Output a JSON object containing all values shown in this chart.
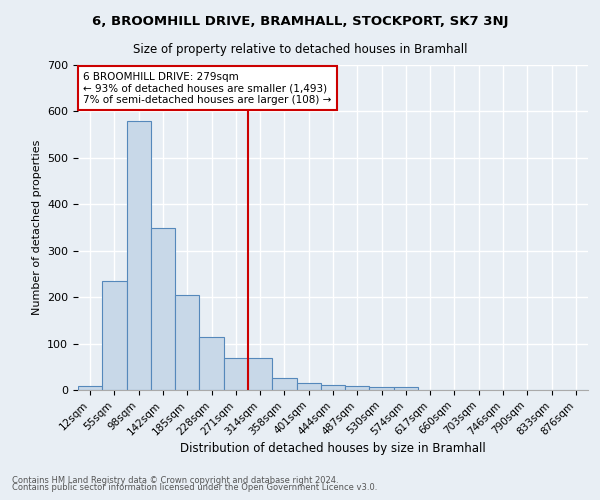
{
  "title1": "6, BROOMHILL DRIVE, BRAMHALL, STOCKPORT, SK7 3NJ",
  "title2": "Size of property relative to detached houses in Bramhall",
  "xlabel": "Distribution of detached houses by size in Bramhall",
  "ylabel": "Number of detached properties",
  "footnote1": "Contains HM Land Registry data © Crown copyright and database right 2024.",
  "footnote2": "Contains public sector information licensed under the Open Government Licence v3.0.",
  "bin_labels": [
    "12sqm",
    "55sqm",
    "98sqm",
    "142sqm",
    "185sqm",
    "228sqm",
    "271sqm",
    "314sqm",
    "358sqm",
    "401sqm",
    "444sqm",
    "487sqm",
    "530sqm",
    "574sqm",
    "617sqm",
    "660sqm",
    "703sqm",
    "746sqm",
    "790sqm",
    "833sqm",
    "876sqm"
  ],
  "bar_heights": [
    8,
    235,
    580,
    350,
    205,
    115,
    70,
    70,
    25,
    15,
    10,
    8,
    6,
    6,
    0,
    0,
    0,
    0,
    0,
    0,
    0
  ],
  "bar_color": "#c8d8e8",
  "bar_edge_color": "#5588bb",
  "property_bin_index": 6.5,
  "vline_color": "#cc0000",
  "annotation_line1": "6 BROOMHILL DRIVE: 279sqm",
  "annotation_line2": "← 93% of detached houses are smaller (1,493)",
  "annotation_line3": "7% of semi-detached houses are larger (108) →",
  "annotation_box_color": "#ffffff",
  "annotation_box_edge": "#cc0000",
  "ylim": [
    0,
    700
  ],
  "yticks": [
    0,
    100,
    200,
    300,
    400,
    500,
    600,
    700
  ],
  "background_color": "#e8eef4",
  "grid_color": "#ffffff"
}
